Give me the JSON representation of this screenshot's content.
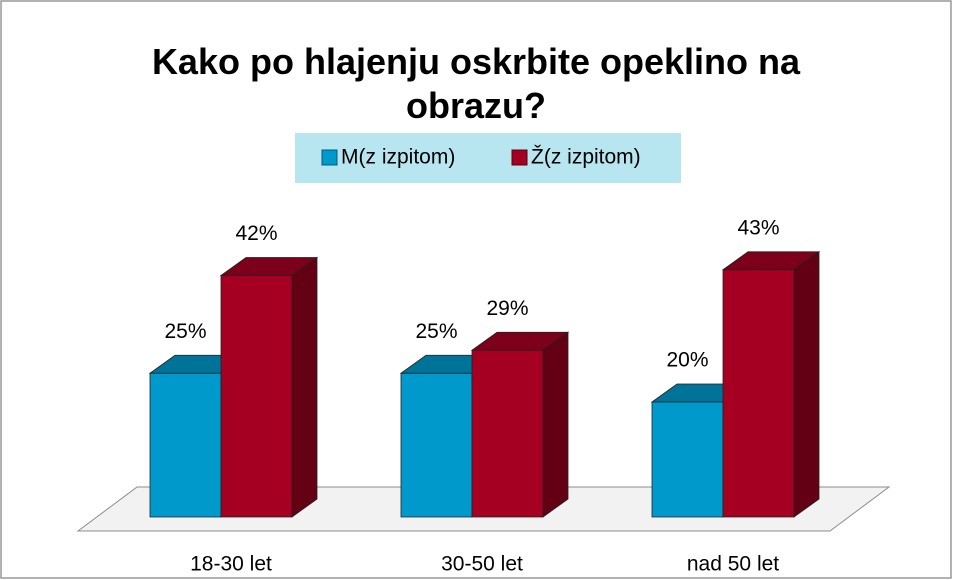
{
  "chart_data": {
    "type": "bar3d",
    "title": "Kako po hlajenju oskrbite opeklino na obrazu?",
    "categories": [
      "18-30 let",
      "30-50 let",
      "nad 50 let"
    ],
    "series": [
      {
        "name": "M(z izpitom)",
        "color": "#0099cc",
        "values": [
          25,
          25,
          20
        ],
        "value_labels": [
          "25%",
          "25%",
          "20%"
        ]
      },
      {
        "name": "Ž(z izpitom)",
        "color": "#a50021",
        "values": [
          42,
          29,
          43
        ],
        "value_labels": [
          "42%",
          "29%",
          "43%"
        ]
      }
    ],
    "legend": "top"
  }
}
